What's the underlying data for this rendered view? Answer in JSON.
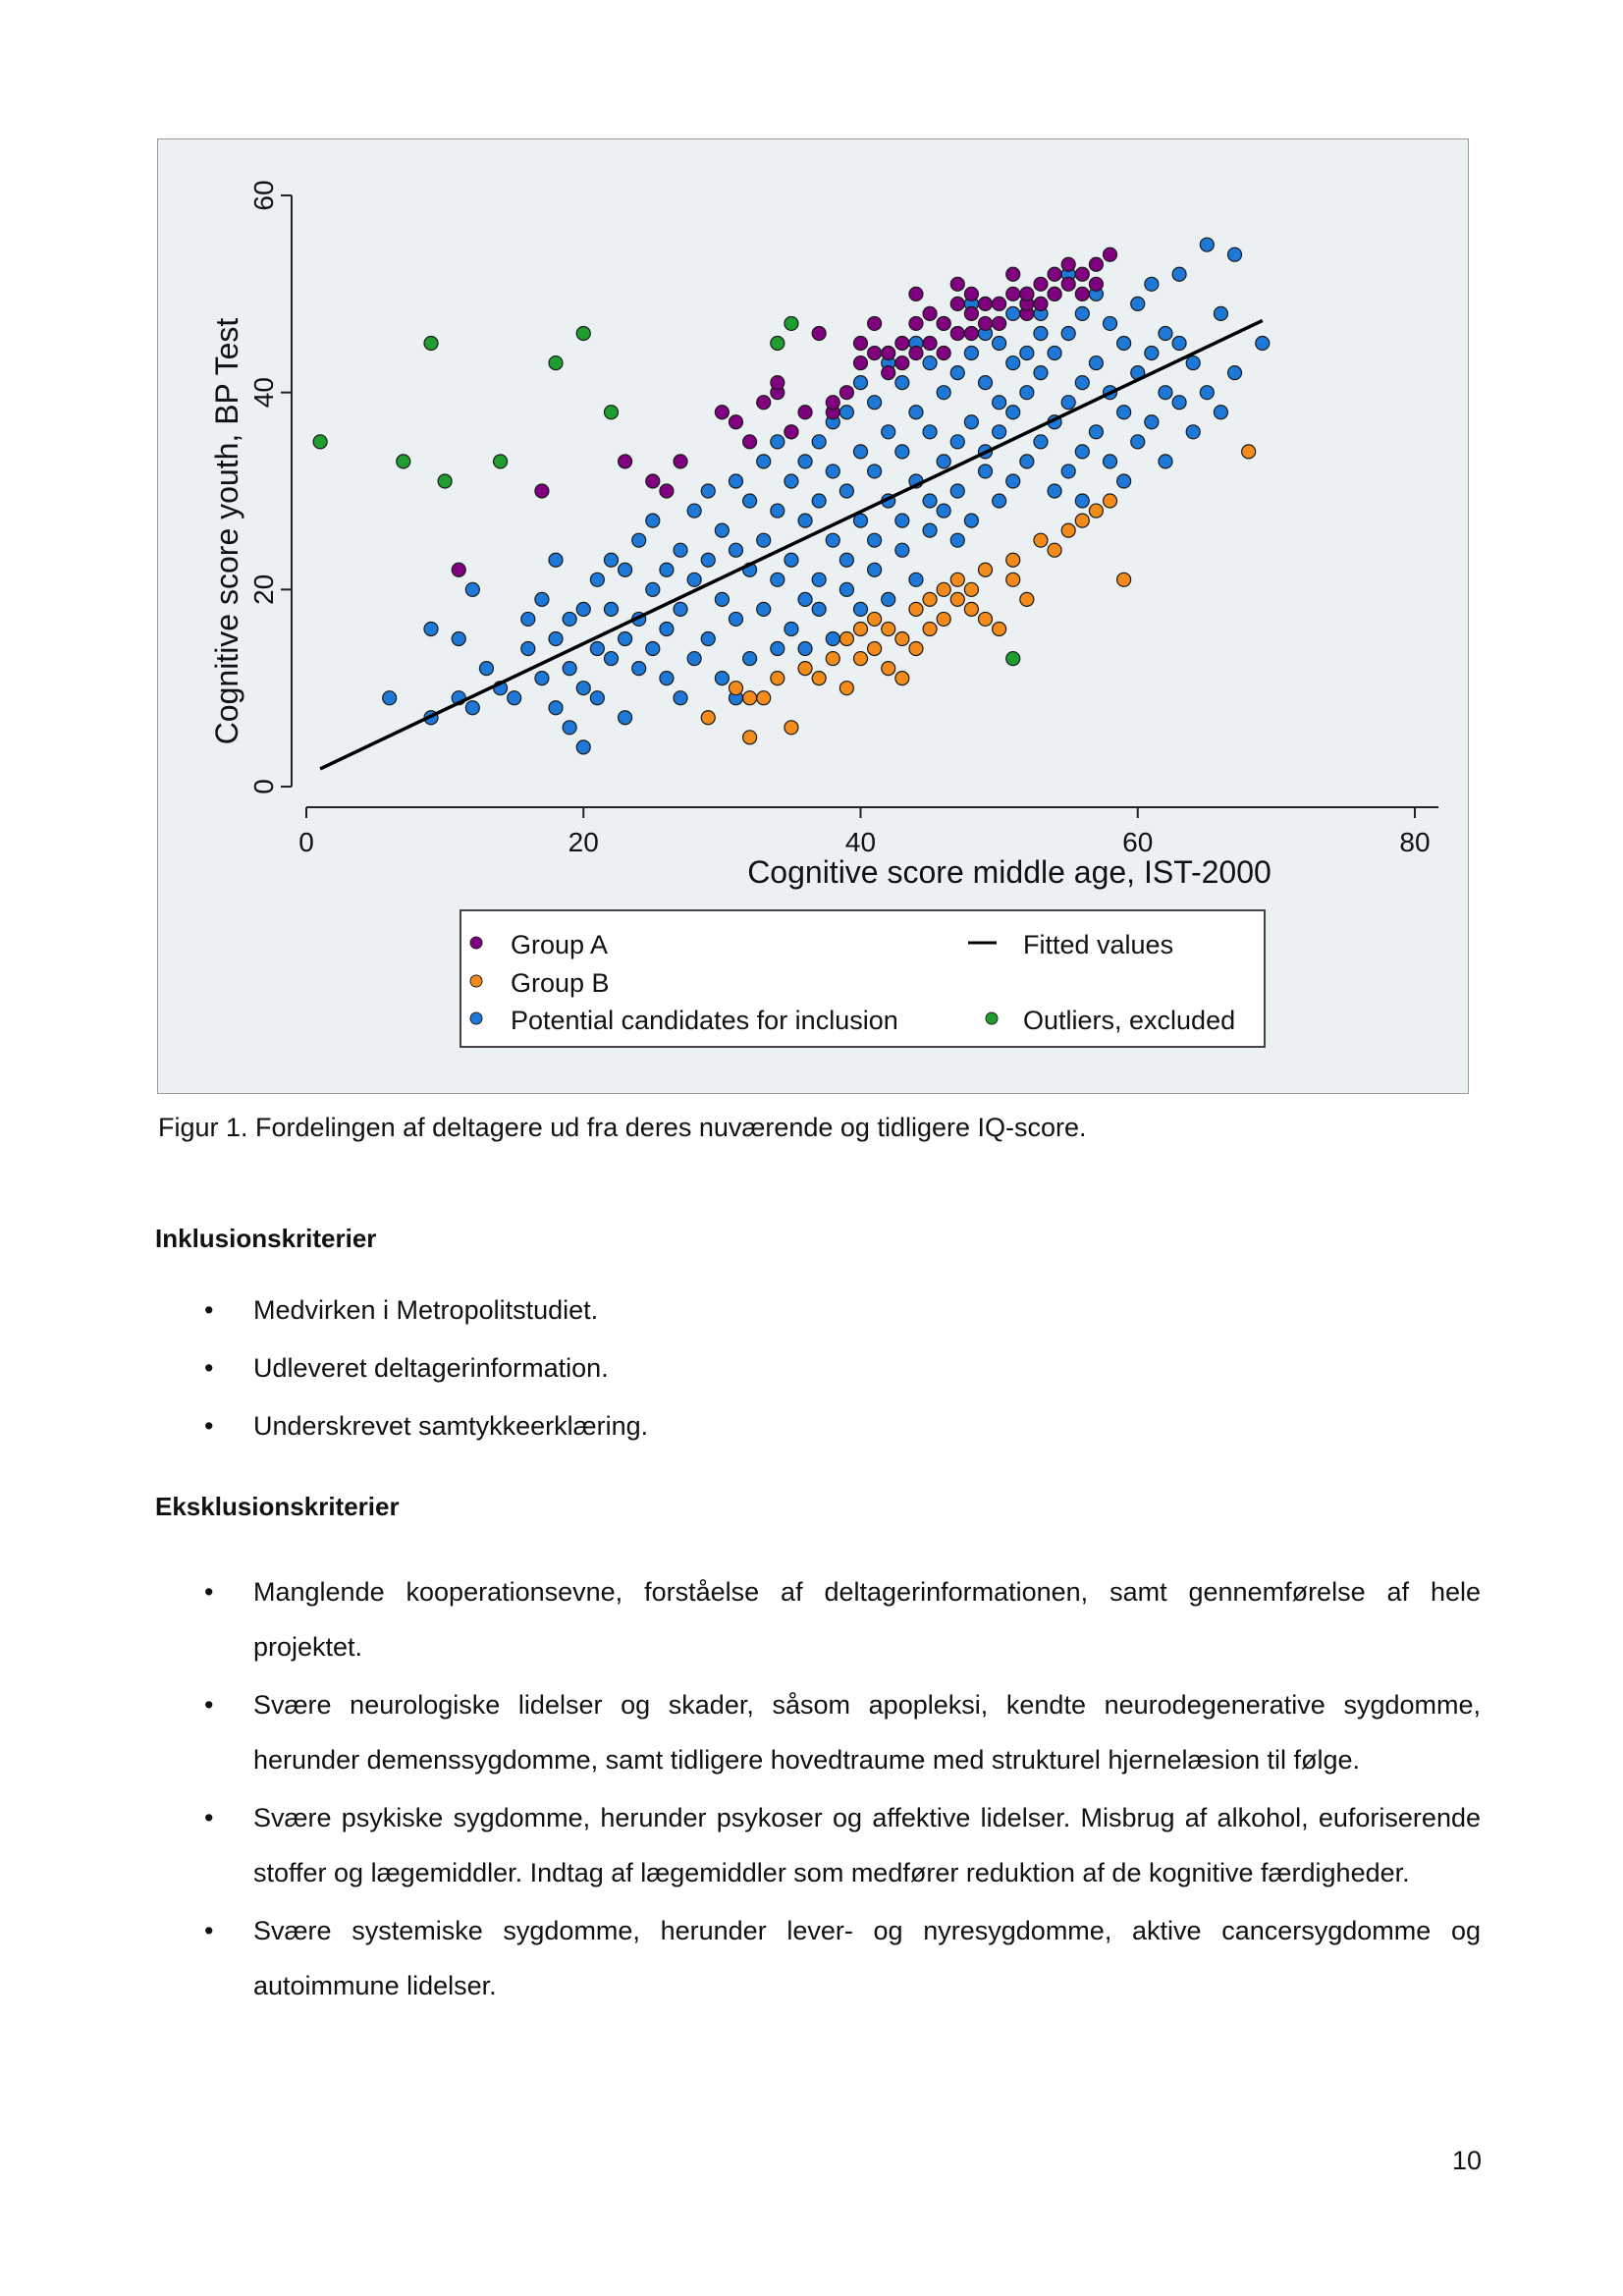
{
  "figure": {
    "caption": "Figur 1. Fordelingen af deltagere ud fra deres nuværende og tidligere IQ-score."
  },
  "chart_data": {
    "type": "scatter",
    "title": "",
    "xlabel": "Cognitive score middle age, IST-2000",
    "ylabel": "Cognitive score youth, BP Test",
    "xlim": [
      0,
      80
    ],
    "ylim": [
      0,
      60
    ],
    "xticks": [
      0,
      20,
      40,
      60,
      80
    ],
    "yticks": [
      0,
      20,
      40,
      60
    ],
    "grid": false,
    "legend_position": "bottom",
    "colors": {
      "group_a": "#800080",
      "group_b": "#f28a1c",
      "candidates": "#1e78d7",
      "outliers": "#1f9e2f",
      "fit": "#000000",
      "plot_bg": "#ebf1f3"
    },
    "legend": [
      {
        "label": "Group A",
        "kind": "point",
        "series": 0
      },
      {
        "label": "Fitted values",
        "kind": "line",
        "series": 4
      },
      {
        "label": "Group B",
        "kind": "point",
        "series": 1
      },
      {
        "label": "Potential candidates for inclusion",
        "kind": "point",
        "series": 2
      },
      {
        "label": "Outliers, excluded",
        "kind": "point",
        "series": 3
      }
    ],
    "series": [
      {
        "name": "Group A",
        "color": "#800080",
        "x": [
          11,
          17,
          23,
          25,
          26,
          27,
          30,
          31,
          32,
          33,
          34,
          34,
          35,
          36,
          37,
          38,
          38,
          39,
          40,
          40,
          41,
          41,
          42,
          42,
          43,
          43,
          44,
          44,
          44,
          45,
          45,
          46,
          46,
          47,
          47,
          47,
          48,
          48,
          48,
          49,
          49,
          50,
          50,
          51,
          51,
          52,
          52,
          52,
          53,
          53,
          54,
          54,
          55,
          55,
          56,
          56,
          57,
          57,
          58
        ],
        "y": [
          22,
          30,
          33,
          31,
          30,
          33,
          38,
          37,
          35,
          39,
          40,
          41,
          36,
          38,
          46,
          38,
          39,
          40,
          43,
          45,
          44,
          47,
          42,
          44,
          43,
          45,
          44,
          47,
          50,
          45,
          48,
          44,
          47,
          46,
          49,
          51,
          46,
          48,
          50,
          47,
          49,
          49,
          47,
          50,
          52,
          48,
          49,
          50,
          49,
          51,
          52,
          50,
          51,
          53,
          50,
          52,
          53,
          51,
          54
        ]
      },
      {
        "name": "Group B",
        "color": "#f28a1c",
        "x": [
          29,
          31,
          32,
          32,
          33,
          34,
          35,
          36,
          37,
          38,
          39,
          39,
          40,
          40,
          41,
          41,
          42,
          42,
          43,
          43,
          44,
          44,
          45,
          45,
          46,
          46,
          47,
          47,
          48,
          48,
          49,
          49,
          50,
          51,
          51,
          52,
          53,
          54,
          55,
          56,
          57,
          58,
          59,
          68
        ],
        "y": [
          7,
          10,
          5,
          9,
          9,
          11,
          6,
          12,
          11,
          13,
          10,
          15,
          13,
          16,
          14,
          17,
          12,
          16,
          11,
          15,
          14,
          18,
          16,
          19,
          17,
          20,
          19,
          21,
          18,
          20,
          17,
          22,
          16,
          21,
          23,
          19,
          25,
          24,
          26,
          27,
          28,
          29,
          21,
          34
        ]
      },
      {
        "name": "Potential candidates for inclusion",
        "color": "#1e78d7",
        "x": [
          6,
          9,
          9,
          11,
          11,
          12,
          12,
          13,
          14,
          15,
          16,
          16,
          17,
          17,
          18,
          18,
          18,
          19,
          19,
          19,
          20,
          20,
          20,
          21,
          21,
          21,
          22,
          22,
          22,
          23,
          23,
          23,
          24,
          24,
          24,
          25,
          25,
          25,
          26,
          26,
          26,
          27,
          27,
          27,
          28,
          28,
          28,
          29,
          29,
          29,
          30,
          30,
          30,
          31,
          31,
          31,
          31,
          32,
          32,
          32,
          33,
          33,
          33,
          34,
          34,
          34,
          34,
          35,
          35,
          35,
          35,
          36,
          36,
          36,
          36,
          37,
          37,
          37,
          37,
          38,
          38,
          38,
          38,
          39,
          39,
          39,
          39,
          40,
          40,
          40,
          40,
          41,
          41,
          41,
          41,
          42,
          42,
          42,
          42,
          43,
          43,
          43,
          43,
          44,
          44,
          44,
          44,
          45,
          45,
          45,
          45,
          46,
          46,
          46,
          46,
          47,
          47,
          47,
          47,
          48,
          48,
          48,
          48,
          49,
          49,
          49,
          49,
          50,
          50,
          50,
          50,
          51,
          51,
          51,
          51,
          52,
          52,
          52,
          52,
          53,
          53,
          53,
          53,
          54,
          54,
          54,
          54,
          55,
          55,
          55,
          55,
          56,
          56,
          56,
          56,
          57,
          57,
          57,
          58,
          58,
          58,
          59,
          59,
          59,
          60,
          60,
          60,
          61,
          61,
          61,
          62,
          62,
          62,
          63,
          63,
          63,
          64,
          64,
          65,
          65,
          66,
          66,
          67,
          67,
          69
        ],
        "y": [
          9,
          7,
          16,
          9,
          15,
          8,
          20,
          12,
          10,
          9,
          14,
          17,
          19,
          11,
          23,
          8,
          15,
          6,
          12,
          17,
          4,
          10,
          18,
          9,
          14,
          21,
          13,
          18,
          23,
          7,
          15,
          22,
          12,
          17,
          25,
          14,
          20,
          27,
          11,
          16,
          22,
          18,
          24,
          9,
          13,
          21,
          28,
          15,
          23,
          30,
          11,
          19,
          26,
          17,
          24,
          31,
          9,
          13,
          22,
          29,
          18,
          25,
          33,
          14,
          21,
          28,
          35,
          16,
          23,
          31,
          36,
          19,
          27,
          33,
          14,
          21,
          29,
          35,
          18,
          25,
          32,
          37,
          15,
          23,
          30,
          38,
          20,
          27,
          34,
          41,
          18,
          25,
          32,
          39,
          22,
          29,
          36,
          43,
          19,
          27,
          34,
          41,
          24,
          31,
          38,
          45,
          21,
          29,
          36,
          43,
          26,
          33,
          40,
          47,
          28,
          35,
          42,
          25,
          30,
          37,
          44,
          49,
          27,
          34,
          41,
          46,
          32,
          39,
          45,
          29,
          36,
          43,
          48,
          31,
          38,
          44,
          50,
          33,
          40,
          46,
          35,
          42,
          48,
          30,
          37,
          44,
          50,
          32,
          39,
          46,
          52,
          34,
          41,
          48,
          29,
          36,
          43,
          50,
          33,
          40,
          47,
          31,
          38,
          45,
          35,
          42,
          49,
          37,
          44,
          51,
          33,
          40,
          46,
          39,
          45,
          52,
          36,
          43,
          40,
          55,
          38,
          48,
          42,
          54,
          45
        ]
      },
      {
        "name": "Outliers, excluded",
        "color": "#1f9e2f",
        "x": [
          1,
          7,
          9,
          10,
          14,
          18,
          20,
          22,
          34,
          35,
          51
        ],
        "y": [
          35,
          33,
          45,
          31,
          33,
          43,
          46,
          38,
          45,
          47,
          13
        ]
      },
      {
        "name": "Fitted values",
        "type": "line",
        "color": "#000000",
        "x": [
          1,
          69
        ],
        "y": [
          1.8,
          47.3
        ]
      }
    ]
  },
  "inclusion": {
    "heading": "Inklusionskriterier",
    "items": [
      "Medvirken i Metropolitstudiet.",
      "Udleveret deltagerinformation.",
      "Underskrevet samtykkeerklæring."
    ]
  },
  "exclusion": {
    "heading": "Eksklusionskriterier",
    "items": [
      "Manglende kooperationsevne, forståelse af deltagerinformationen, samt gennemførelse af hele projektet.",
      "Svære neurologiske lidelser og skader, såsom apopleksi, kendte neurodegenerative sygdomme, herunder demenssygdomme, samt tidligere hovedtraume med strukturel hjernelæsion til følge.",
      "Svære psykiske sygdomme, herunder psykoser og affektive lidelser. Misbrug af alkohol, euforiserende stoffer og lægemiddler. Indtag af lægemiddler som medfører reduktion af de kognitive færdigheder.",
      "Svære systemiske sygdomme, herunder lever- og nyresygdomme, aktive cancersygdomme og autoimmune lidelser."
    ]
  },
  "page_number": "10"
}
